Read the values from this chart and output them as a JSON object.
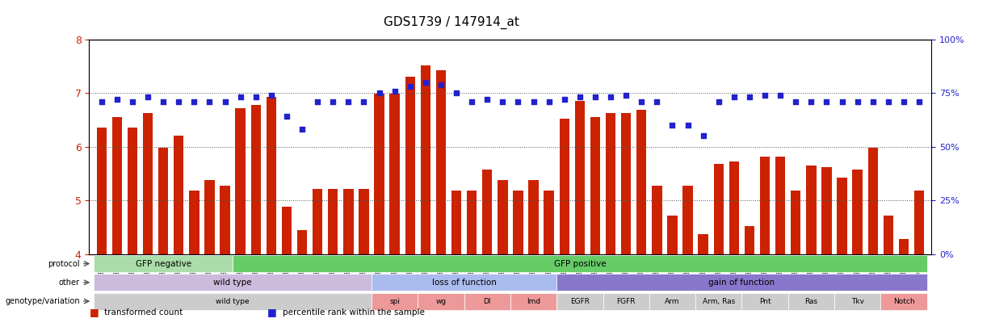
{
  "title": "GDS1739 / 147914_at",
  "samples": [
    "GSM88220",
    "GSM88221",
    "GSM88222",
    "GSM88244",
    "GSM88245",
    "GSM88246",
    "GSM88259",
    "GSM88260",
    "GSM88261",
    "GSM88223",
    "GSM88224",
    "GSM88225",
    "GSM88247",
    "GSM88248",
    "GSM88249",
    "GSM88262",
    "GSM88263",
    "GSM88264",
    "GSM88217",
    "GSM88218",
    "GSM88219",
    "GSM88241",
    "GSM88242",
    "GSM88243",
    "GSM88250",
    "GSM88251",
    "GSM88252",
    "GSM88253",
    "GSM88254",
    "GSM88255",
    "GSM88211",
    "GSM88212",
    "GSM88213",
    "GSM88214",
    "GSM88215",
    "GSM88216",
    "GSM88226",
    "GSM88227",
    "GSM88228",
    "GSM88229",
    "GSM88230",
    "GSM88231",
    "GSM88232",
    "GSM88233",
    "GSM88234",
    "GSM88235",
    "GSM88236",
    "GSM88237",
    "GSM88238",
    "GSM88239",
    "GSM88240",
    "GSM88256",
    "GSM88257",
    "GSM00258"
  ],
  "bar_values": [
    6.35,
    6.55,
    6.35,
    6.62,
    5.98,
    6.2,
    5.18,
    5.38,
    5.28,
    6.72,
    6.78,
    6.92,
    4.88,
    4.45,
    5.22,
    5.22,
    5.22,
    5.22,
    6.98,
    6.98,
    7.3,
    7.52,
    7.42,
    5.18,
    5.18,
    5.58,
    5.38,
    5.18,
    5.38,
    5.18,
    6.52,
    6.85,
    6.55,
    6.62,
    6.62,
    6.68,
    5.28,
    4.72,
    5.28,
    4.38,
    5.68,
    5.72,
    4.52,
    5.82,
    5.82,
    5.18,
    5.65,
    5.62,
    5.42,
    5.58,
    5.98,
    4.72,
    4.28,
    5.18
  ],
  "percentile_values": [
    71,
    72,
    71,
    73,
    71,
    71,
    71,
    71,
    71,
    73,
    73,
    74,
    64,
    58,
    71,
    71,
    71,
    71,
    75,
    76,
    78,
    80,
    79,
    75,
    71,
    72,
    71,
    71,
    71,
    71,
    72,
    73,
    73,
    73,
    74,
    71,
    71,
    60,
    60,
    55,
    71,
    73,
    73,
    74,
    74,
    71,
    71,
    71,
    71,
    71,
    71,
    71,
    71,
    71
  ],
  "ylim": [
    4,
    8
  ],
  "yticks": [
    4,
    5,
    6,
    7,
    8
  ],
  "y2lim": [
    0,
    100
  ],
  "y2ticks": [
    0,
    25,
    50,
    75,
    100
  ],
  "bar_color": "#cc2200",
  "dot_color": "#2222cc",
  "bg_color": "#ffffff",
  "dotted_line_color": "#555555",
  "protocol_groups": [
    {
      "label": "GFP negative",
      "start": 0,
      "end": 8,
      "color": "#aaddaa"
    },
    {
      "label": "GFP positive",
      "start": 9,
      "end": 53,
      "color": "#66cc66"
    }
  ],
  "other_groups": [
    {
      "label": "wild type",
      "start": 0,
      "end": 17,
      "color": "#ccbbdd"
    },
    {
      "label": "loss of function",
      "start": 18,
      "end": 29,
      "color": "#aabbee"
    },
    {
      "label": "gain of function",
      "start": 30,
      "end": 53,
      "color": "#8877cc"
    }
  ],
  "genotype_groups": [
    {
      "label": "wild type",
      "start": 0,
      "end": 17,
      "color": "#cccccc"
    },
    {
      "label": "spi",
      "start": 18,
      "end": 20,
      "color": "#ee9999"
    },
    {
      "label": "wg",
      "start": 21,
      "end": 23,
      "color": "#ee9999"
    },
    {
      "label": "Dl",
      "start": 24,
      "end": 26,
      "color": "#ee9999"
    },
    {
      "label": "Imd",
      "start": 27,
      "end": 29,
      "color": "#ee9999"
    },
    {
      "label": "EGFR",
      "start": 30,
      "end": 32,
      "color": "#cccccc"
    },
    {
      "label": "FGFR",
      "start": 33,
      "end": 35,
      "color": "#cccccc"
    },
    {
      "label": "Arm",
      "start": 36,
      "end": 38,
      "color": "#cccccc"
    },
    {
      "label": "Arm, Ras",
      "start": 39,
      "end": 41,
      "color": "#cccccc"
    },
    {
      "label": "Pnt",
      "start": 42,
      "end": 44,
      "color": "#cccccc"
    },
    {
      "label": "Ras",
      "start": 45,
      "end": 47,
      "color": "#cccccc"
    },
    {
      "label": "Tkv",
      "start": 48,
      "end": 50,
      "color": "#cccccc"
    },
    {
      "label": "Notch",
      "start": 51,
      "end": 53,
      "color": "#ee9999"
    }
  ],
  "row_labels": [
    "protocol",
    "other",
    "genotype/variation"
  ],
  "legend_items": [
    {
      "label": "transformed count",
      "color": "#cc2200",
      "marker": "s"
    },
    {
      "label": "percentile rank within the sample",
      "color": "#2222cc",
      "marker": "s"
    }
  ]
}
